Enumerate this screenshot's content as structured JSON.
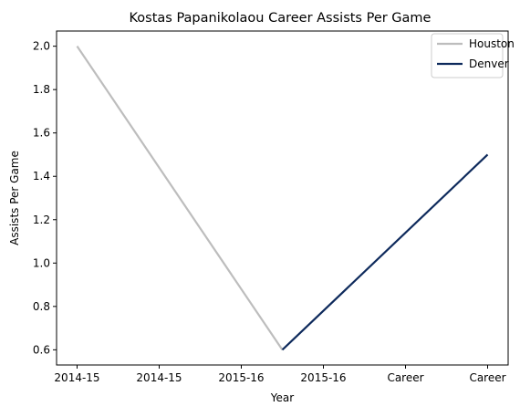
{
  "chart_data": {
    "type": "line",
    "title": "Kostas Papanikolaou Career Assists Per Game",
    "xlabel": "Year",
    "ylabel": "Assists Per Game",
    "x_tick_labels": [
      "2014-15",
      "2014-15",
      "2015-16",
      "2015-16",
      "Career",
      "Career"
    ],
    "xlim": [
      -0.25,
      5.25
    ],
    "ylim": [
      0.53,
      2.07
    ],
    "y_ticks": [
      0.6,
      0.8,
      1.0,
      1.2,
      1.4,
      1.6,
      1.8,
      2.0
    ],
    "y_tick_labels": [
      "0.6",
      "0.8",
      "1.0",
      "1.2",
      "1.4",
      "1.6",
      "1.8",
      "2.0"
    ],
    "grid": false,
    "legend_position": "top-right",
    "series": [
      {
        "name": "Houston",
        "color": "#bdbdbd",
        "x": [
          0,
          2.5
        ],
        "y": [
          2.0,
          0.6
        ]
      },
      {
        "name": "Denver",
        "color": "#0e2a5c",
        "x": [
          2.5,
          5
        ],
        "y": [
          0.6,
          1.5
        ]
      }
    ]
  }
}
